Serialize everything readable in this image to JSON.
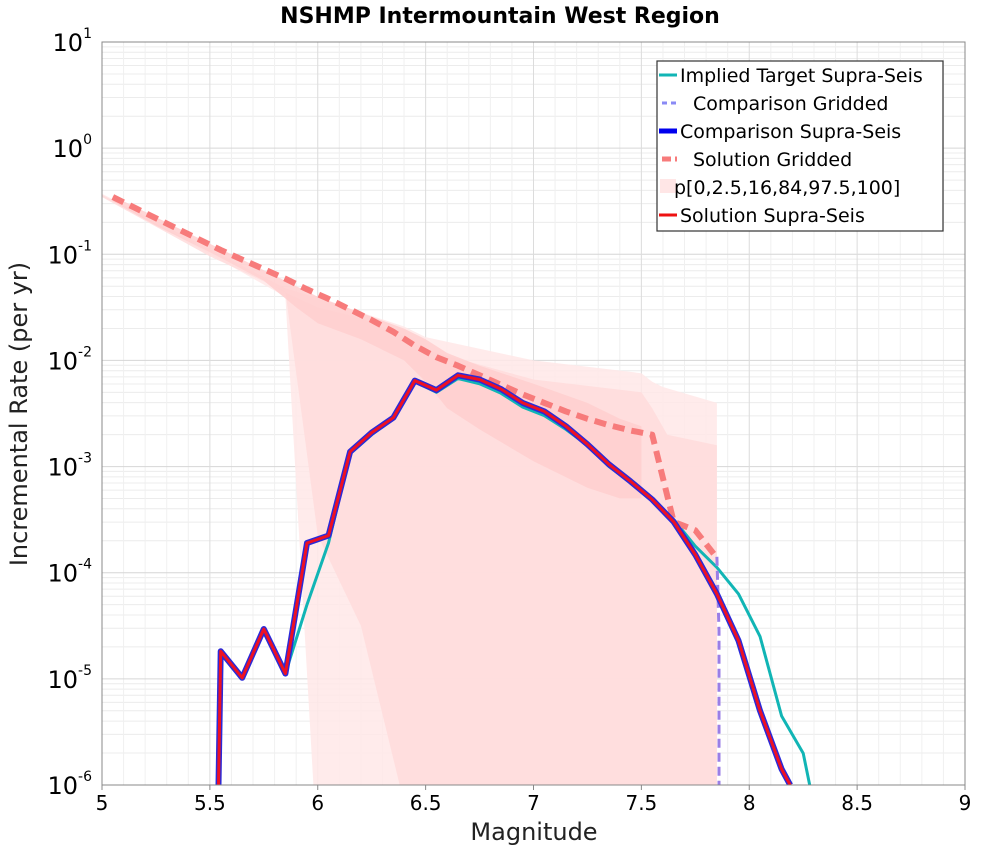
{
  "chart_data": {
    "type": "line",
    "title": "NSHMP Intermountain West Region",
    "xlabel": "Magnitude",
    "ylabel": "Incremental Rate (per yr)",
    "xlim": [
      5,
      9
    ],
    "ylim_log10": [
      -6,
      1
    ],
    "yscale": "log",
    "grid": true,
    "legend_position": "top-right",
    "x_ticks": [
      "5",
      "5.5",
      "6",
      "6.5",
      "7",
      "7.5",
      "8",
      "8.5",
      "9"
    ],
    "x_tick_values": [
      5,
      5.5,
      6,
      6.5,
      7,
      7.5,
      8,
      8.5,
      9
    ],
    "y_ticks": [
      {
        "base": "10",
        "exp": "1",
        "value": 1
      },
      {
        "base": "10",
        "exp": "0",
        "value": 0
      },
      {
        "base": "10",
        "exp": "-1",
        "value": -1
      },
      {
        "base": "10",
        "exp": "-2",
        "value": -2
      },
      {
        "base": "10",
        "exp": "-3",
        "value": -3
      },
      {
        "base": "10",
        "exp": "-4",
        "value": -4
      },
      {
        "base": "10",
        "exp": "-5",
        "value": -5
      },
      {
        "base": "10",
        "exp": "-6",
        "value": -6
      }
    ],
    "legend": [
      {
        "label": "Implied Target Supra-Seis",
        "color": "#11b5b5",
        "style": "solid"
      },
      {
        "label": "Comparison Gridded",
        "color": "#8a8af5",
        "style": "dashed"
      },
      {
        "label": "Comparison Supra-Seis",
        "color": "#0000ee",
        "style": "thick"
      },
      {
        "label": "Solution Gridded",
        "color": "#f77b7b",
        "style": "thickdash"
      },
      {
        "label": "p[0,2.5,16,84,97.5,100]",
        "color": "#ffe6e6",
        "style": "band"
      },
      {
        "label": "Solution Supra-Seis",
        "color": "#ee1111",
        "style": "solid"
      }
    ],
    "colors": {
      "implied": "#11b5b5",
      "comp_grid": "#9a7ee6",
      "comp_supra": "#2a2ad8",
      "sol_grid": "#f77b7b",
      "band_outer": "#ffe8e8",
      "band_mid": "#ffdcdc",
      "band_inner": "#ffcfcf",
      "sol_supra": "#ee1122"
    },
    "series": [
      {
        "name": "Implied Target Supra-Seis",
        "x": [
          5.55,
          5.65,
          5.75,
          5.85,
          5.95,
          6.05,
          6.15,
          6.25,
          6.35,
          6.45,
          6.55,
          6.65,
          6.75,
          6.85,
          6.95,
          7.05,
          7.15,
          7.25,
          7.35,
          7.45,
          7.55,
          7.65,
          7.75,
          7.85,
          7.95,
          8.05,
          8.15,
          8.25,
          8.28
        ],
        "log10y": [
          -4.74,
          -4.99,
          -4.53,
          -4.95,
          -4.3,
          -3.72,
          -2.88,
          -2.7,
          -2.55,
          -2.2,
          -2.3,
          -2.17,
          -2.22,
          -2.31,
          -2.44,
          -2.52,
          -2.65,
          -2.8,
          -3.0,
          -3.15,
          -3.3,
          -3.5,
          -3.75,
          -3.95,
          -4.2,
          -4.6,
          -5.35,
          -5.7,
          -6.0
        ]
      },
      {
        "name": "Comparison Gridded",
        "x": [
          7.85,
          7.86,
          7.86
        ],
        "log10y": [
          -3.85,
          -4.55,
          -6.0
        ]
      },
      {
        "name": "Comparison Supra-Seis",
        "x": [
          5.54,
          5.55,
          5.65,
          5.75,
          5.85,
          5.95,
          6.05,
          6.15,
          6.25,
          6.35,
          6.45,
          6.55,
          6.65,
          6.75,
          6.85,
          6.95,
          7.05,
          7.15,
          7.25,
          7.35,
          7.45,
          7.55,
          7.65,
          7.75,
          7.85,
          7.95,
          8.05,
          8.15,
          8.19
        ],
        "log10y": [
          -6.0,
          -4.74,
          -4.99,
          -4.53,
          -4.95,
          -3.72,
          -3.65,
          -2.86,
          -2.68,
          -2.54,
          -2.19,
          -2.28,
          -2.14,
          -2.18,
          -2.27,
          -2.4,
          -2.48,
          -2.62,
          -2.79,
          -2.98,
          -3.14,
          -3.31,
          -3.52,
          -3.83,
          -4.2,
          -4.64,
          -5.3,
          -5.85,
          -6.0
        ]
      },
      {
        "name": "Solution Gridded",
        "x": [
          5.05,
          5.15,
          5.25,
          5.35,
          5.45,
          5.55,
          5.65,
          5.75,
          5.85,
          5.95,
          6.05,
          6.15,
          6.25,
          6.35,
          6.45,
          6.55,
          6.65,
          6.75,
          6.85,
          6.95,
          7.05,
          7.15,
          7.25,
          7.35,
          7.45,
          7.55,
          7.65,
          7.75,
          7.85
        ],
        "log10y": [
          -0.46,
          -0.56,
          -0.66,
          -0.76,
          -0.86,
          -0.96,
          -1.05,
          -1.14,
          -1.23,
          -1.33,
          -1.42,
          -1.52,
          -1.62,
          -1.73,
          -1.86,
          -1.97,
          -2.05,
          -2.14,
          -2.23,
          -2.32,
          -2.4,
          -2.48,
          -2.55,
          -2.61,
          -2.66,
          -2.7,
          -3.52,
          -3.6,
          -3.86
        ]
      },
      {
        "name": "Solution Supra-Seis",
        "x": [
          5.54,
          5.55,
          5.65,
          5.75,
          5.85,
          5.95,
          6.05,
          6.15,
          6.25,
          6.35,
          6.45,
          6.55,
          6.65,
          6.75,
          6.85,
          6.95,
          7.05,
          7.15,
          7.25,
          7.35,
          7.45,
          7.55,
          7.65,
          7.75,
          7.85,
          7.95,
          8.05,
          8.15,
          8.19
        ],
        "log10y": [
          -6.0,
          -4.74,
          -4.99,
          -4.53,
          -4.95,
          -3.72,
          -3.65,
          -2.86,
          -2.68,
          -2.54,
          -2.19,
          -2.28,
          -2.14,
          -2.18,
          -2.27,
          -2.4,
          -2.48,
          -2.62,
          -2.79,
          -2.98,
          -3.14,
          -3.31,
          -3.52,
          -3.83,
          -4.2,
          -4.64,
          -5.3,
          -5.85,
          -6.0
        ]
      }
    ],
    "bands": [
      {
        "name": "p[0,100]",
        "x": [
          5.0,
          5.5,
          5.85,
          5.98,
          6.4,
          6.5,
          7.0,
          7.5,
          7.55,
          7.6,
          7.85
        ],
        "upper_log10": [
          -0.43,
          -0.95,
          -1.32,
          -1.4,
          -1.68,
          -1.78,
          -2.0,
          -2.12,
          -2.2,
          -2.25,
          -2.4
        ],
        "lower_log10": [
          -0.45,
          -1.0,
          -1.4,
          -6.0,
          -6.0,
          -6.0,
          -6.0,
          -6.0,
          -6.0,
          -6.0,
          -6.0
        ]
      },
      {
        "name": "p[2.5,97.5]",
        "x": [
          5.0,
          5.5,
          5.85,
          6.0,
          6.2,
          6.38,
          6.5,
          7.0,
          7.5,
          7.55,
          7.62,
          7.85
        ],
        "upper_log10": [
          -0.44,
          -0.98,
          -1.36,
          -1.5,
          -1.6,
          -1.75,
          -1.9,
          -2.18,
          -2.3,
          -2.45,
          -2.7,
          -2.8
        ],
        "lower_log10": [
          -0.46,
          -1.02,
          -1.35,
          -3.65,
          -4.5,
          -6.0,
          -6.0,
          -6.0,
          -6.0,
          -6.0,
          -6.0,
          -6.0
        ]
      },
      {
        "name": "p[16,84]",
        "x": [
          5.05,
          5.25,
          5.5,
          5.75,
          5.9,
          6.0,
          6.2,
          6.4,
          6.5,
          6.6,
          6.75,
          7.0,
          7.25,
          7.4,
          7.5
        ],
        "upper_log10": [
          -0.45,
          -0.65,
          -0.9,
          -1.15,
          -1.3,
          -1.4,
          -1.55,
          -1.7,
          -1.8,
          -1.93,
          -2.05,
          -2.22,
          -2.4,
          -2.55,
          -2.62
        ],
        "lower_log10": [
          -0.5,
          -0.73,
          -0.98,
          -1.25,
          -1.5,
          -1.65,
          -1.8,
          -2.0,
          -2.2,
          -2.45,
          -2.65,
          -2.95,
          -3.2,
          -3.3,
          -3.3
        ]
      }
    ]
  }
}
